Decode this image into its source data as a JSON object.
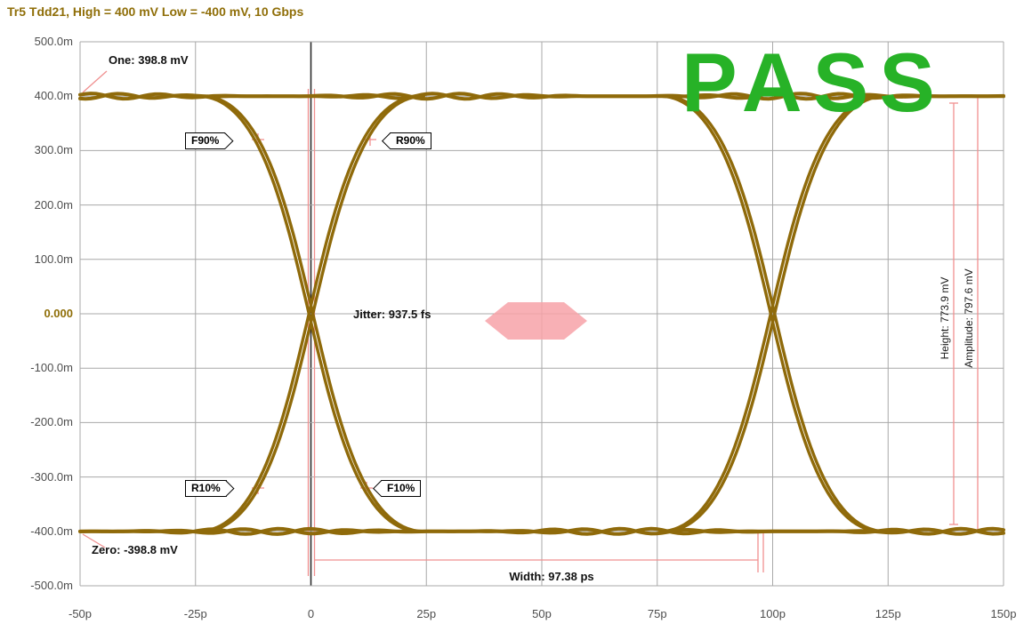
{
  "title": "Tr5 Tdd21, High = 400 mV Low = -400 mV, 10 Gbps",
  "colors": {
    "trace": "#8f6a0a",
    "title": "#8f6e08",
    "grid": "#a8a8a8",
    "zero_axis": "#2b2b2b",
    "axis_text": "#4d4d4d",
    "mask": "#f7a2a8",
    "measure": "#f09090",
    "pass": "#27b227"
  },
  "chart_data": {
    "type": "line",
    "subtype": "eye-diagram",
    "title": "Tr5 Tdd21, High = 400 mV Low = -400 mV, 10 Gbps",
    "x_unit": "ps",
    "y_unit": "mV",
    "x_ticks": [
      "-50p",
      "-25p",
      "0",
      "25p",
      "50p",
      "75p",
      "100p",
      "125p",
      "150p"
    ],
    "y_ticks": [
      "500.0m",
      "400.0m",
      "300.0m",
      "200.0m",
      "100.0m",
      "0.000",
      "-100.0m",
      "-200.0m",
      "-300.0m",
      "-400.0m",
      "-500.0m"
    ],
    "x_range_ps": [
      -50,
      150
    ],
    "y_range_mV": [
      -500,
      500
    ],
    "high_mV": 400,
    "low_mV": -400,
    "bit_rate": "10 Gbps",
    "grid": true,
    "eye": {
      "crossings_ps": [
        0,
        100
      ],
      "transition_halfwidth_ps": 24,
      "rail_levels_mV": [
        400,
        -400
      ]
    },
    "measurements": {
      "one": {
        "label": "One: 398.8 mV",
        "value_mV": 398.8
      },
      "zero": {
        "label": "Zero: -398.8 mV",
        "value_mV": -398.8
      },
      "jitter": {
        "label": "Jitter: 937.5 fs",
        "value_fs": 937.5
      },
      "width": {
        "label": "Width: 97.38 ps",
        "value_ps": 97.38
      },
      "height": {
        "label": "Height: 773.9 mV",
        "value_mV": 773.9
      },
      "amplitude": {
        "label": "Amplitude: 797.6 mV",
        "value_mV": 797.6
      }
    },
    "threshold_markers": [
      "F90%",
      "R90%",
      "R10%",
      "F10%"
    ],
    "result": "PASS"
  }
}
